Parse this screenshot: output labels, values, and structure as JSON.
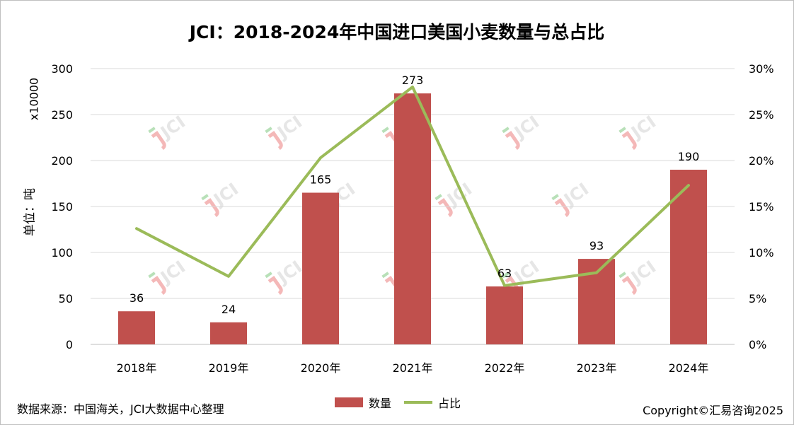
{
  "title": "JCI：2018-2024年中国进口美国小麦数量与总占比",
  "unit_label": "x10000",
  "ylabel_left": "单位：吨",
  "footer": {
    "source": "数据来源：中国海关，JCI大数据中心整理",
    "copyright": "Copyright©汇易咨询2025"
  },
  "legend": {
    "bar_label": "数量",
    "line_label": "占比"
  },
  "watermark_text": "JCI",
  "colors": {
    "bar": "#c0504d",
    "line": "#9bbb59",
    "grid": "#d9d9d9",
    "watermark_red": "#f4b8b8",
    "watermark_green": "#b8e0b8"
  },
  "chart_data": {
    "type": "bar",
    "categories": [
      "2018年",
      "2019年",
      "2020年",
      "2021年",
      "2022年",
      "2023年",
      "2024年"
    ],
    "series": [
      {
        "name": "数量",
        "type": "bar",
        "axis": "left",
        "values": [
          36,
          24,
          165,
          273,
          63,
          93,
          190
        ],
        "data_labels": [
          "36",
          "24",
          "165",
          "273",
          "63",
          "93",
          "190"
        ]
      },
      {
        "name": "占比",
        "type": "line",
        "axis": "right",
        "values": [
          12.6,
          7.4,
          20.3,
          28.0,
          6.4,
          7.8,
          17.3
        ]
      }
    ],
    "y_left": {
      "range": [
        0,
        300
      ],
      "ticks": [
        0,
        50,
        100,
        150,
        200,
        250,
        300
      ],
      "tick_labels": [
        "0",
        "50",
        "100",
        "150",
        "200",
        "250",
        "300"
      ]
    },
    "y_right": {
      "range": [
        0,
        30
      ],
      "ticks": [
        0,
        5,
        10,
        15,
        20,
        25,
        30
      ],
      "tick_labels": [
        "0%",
        "5%",
        "10%",
        "15%",
        "20%",
        "25%",
        "30%"
      ]
    },
    "grid": true,
    "legend_position": "bottom"
  }
}
